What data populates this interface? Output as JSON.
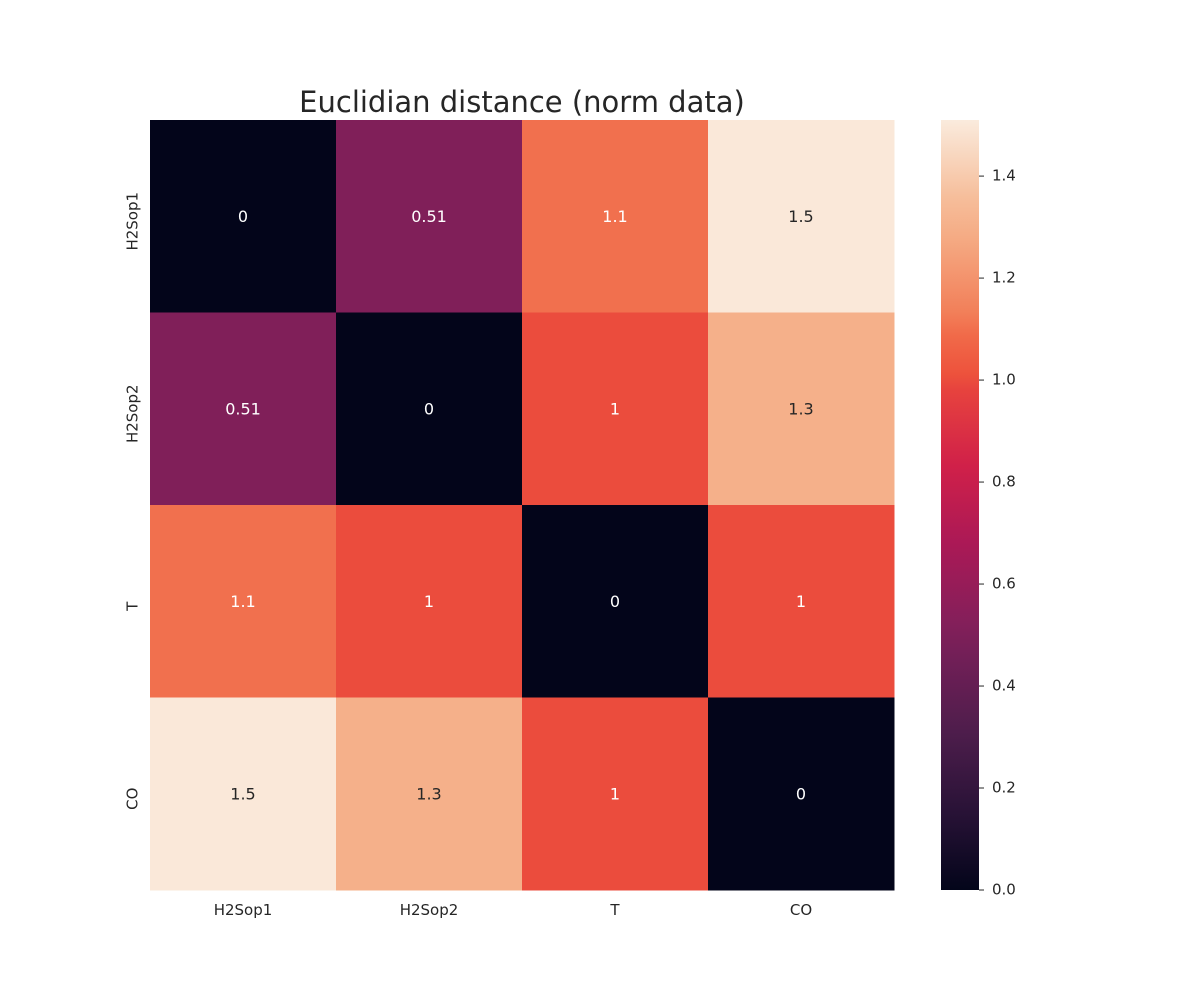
{
  "chart_data": {
    "type": "heatmap",
    "title": "Euclidian distance (norm data)",
    "x_categories": [
      "H2Sop1",
      "H2Sop2",
      "T",
      "CO"
    ],
    "y_categories": [
      "H2Sop1",
      "H2Sop2",
      "T",
      "CO"
    ],
    "values": [
      [
        0,
        0.51,
        1.1,
        1.5
      ],
      [
        0.51,
        0,
        1.0,
        1.3
      ],
      [
        1.1,
        1.0,
        0,
        1.0
      ],
      [
        1.5,
        1.3,
        1.0,
        0
      ]
    ],
    "annotations": [
      [
        "0",
        "0.51",
        "1.1",
        "1.5"
      ],
      [
        "0.51",
        "0",
        "1",
        "1.3"
      ],
      [
        "1.1",
        "1",
        "0",
        "1"
      ],
      [
        "1.5",
        "1.3",
        "1",
        "0"
      ]
    ],
    "colorbar": {
      "colormap": "rocket",
      "vmin": 0,
      "vmax": 1.51,
      "ticks": [
        0.0,
        0.2,
        0.4,
        0.6,
        0.8,
        1.0,
        1.2,
        1.4
      ],
      "tick_labels": [
        "0.0",
        "0.2",
        "0.4",
        "0.6",
        "0.8",
        "1.0",
        "1.2",
        "1.4"
      ]
    },
    "xlabel": "",
    "ylabel": "",
    "grid": false
  }
}
